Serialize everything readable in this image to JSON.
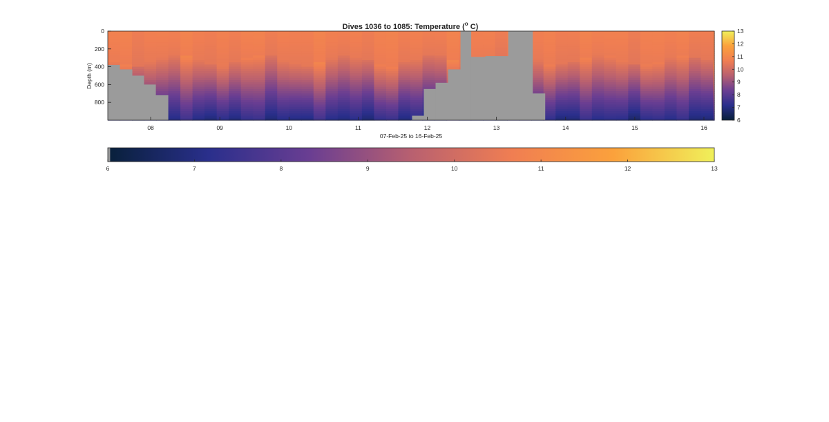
{
  "chart_data": {
    "type": "heatmap",
    "title": "Dives 1036 to 1085: Temperature (",
    "title_superscript": "o",
    "title_unit_suffix": " C)",
    "xlabel": "07-Feb-25 to 16-Feb-25",
    "ylabel": "Depth (m)",
    "x_ticks": [
      "08",
      "09",
      "10",
      "11",
      "12",
      "13",
      "14",
      "15",
      "16"
    ],
    "x_tick_days": [
      8,
      9,
      10,
      11,
      12,
      13,
      14,
      15,
      16
    ],
    "xlim_days": [
      7.38,
      16.15
    ],
    "y_ticks": [
      "0",
      "200",
      "400",
      "600",
      "800"
    ],
    "y_tick_values": [
      0,
      200,
      400,
      600,
      800
    ],
    "ylim": [
      0,
      1000
    ],
    "y_reversed": true,
    "colormap": [
      "#08203a",
      "#2a2f8c",
      "#6a3e92",
      "#b86070",
      "#f07e52",
      "#fba13c",
      "#f0f05a"
    ],
    "nodata_color": "#9b9b9b",
    "color_limits": [
      6,
      13
    ],
    "side_colorbar_ticks": [
      "6",
      "7",
      "8",
      "9",
      "10",
      "11",
      "12",
      "13"
    ],
    "bottom_colorbar_ticks": [
      "6",
      "7",
      "8",
      "9",
      "10",
      "11",
      "12",
      "13"
    ],
    "gaps": [
      {
        "from": 12.48,
        "to": 12.63,
        "top": 0
      },
      {
        "from": 12.63,
        "to": 12.84,
        "top": 0,
        "profile_to": 290
      },
      {
        "from": 12.84,
        "to": 13.17,
        "top": 0,
        "profile_to": 280
      },
      {
        "from": 13.17,
        "to": 13.52,
        "top": 0
      }
    ],
    "profiles_bottom": [
      {
        "from": 7.38,
        "to": 7.55,
        "max_depth": 380
      },
      {
        "from": 7.55,
        "to": 7.73,
        "max_depth": 430
      },
      {
        "from": 7.73,
        "to": 7.9,
        "max_depth": 500
      },
      {
        "from": 7.9,
        "to": 8.07,
        "max_depth": 600
      },
      {
        "from": 8.07,
        "to": 8.25,
        "max_depth": 720
      },
      {
        "from": 11.78,
        "to": 11.95,
        "max_depth": 950
      },
      {
        "from": 11.95,
        "to": 12.12,
        "max_depth": 650
      },
      {
        "from": 12.12,
        "to": 12.3,
        "max_depth": 580
      },
      {
        "from": 12.3,
        "to": 12.48,
        "max_depth": 430
      },
      {
        "from": 13.52,
        "to": 13.7,
        "max_depth": 700
      }
    ]
  }
}
